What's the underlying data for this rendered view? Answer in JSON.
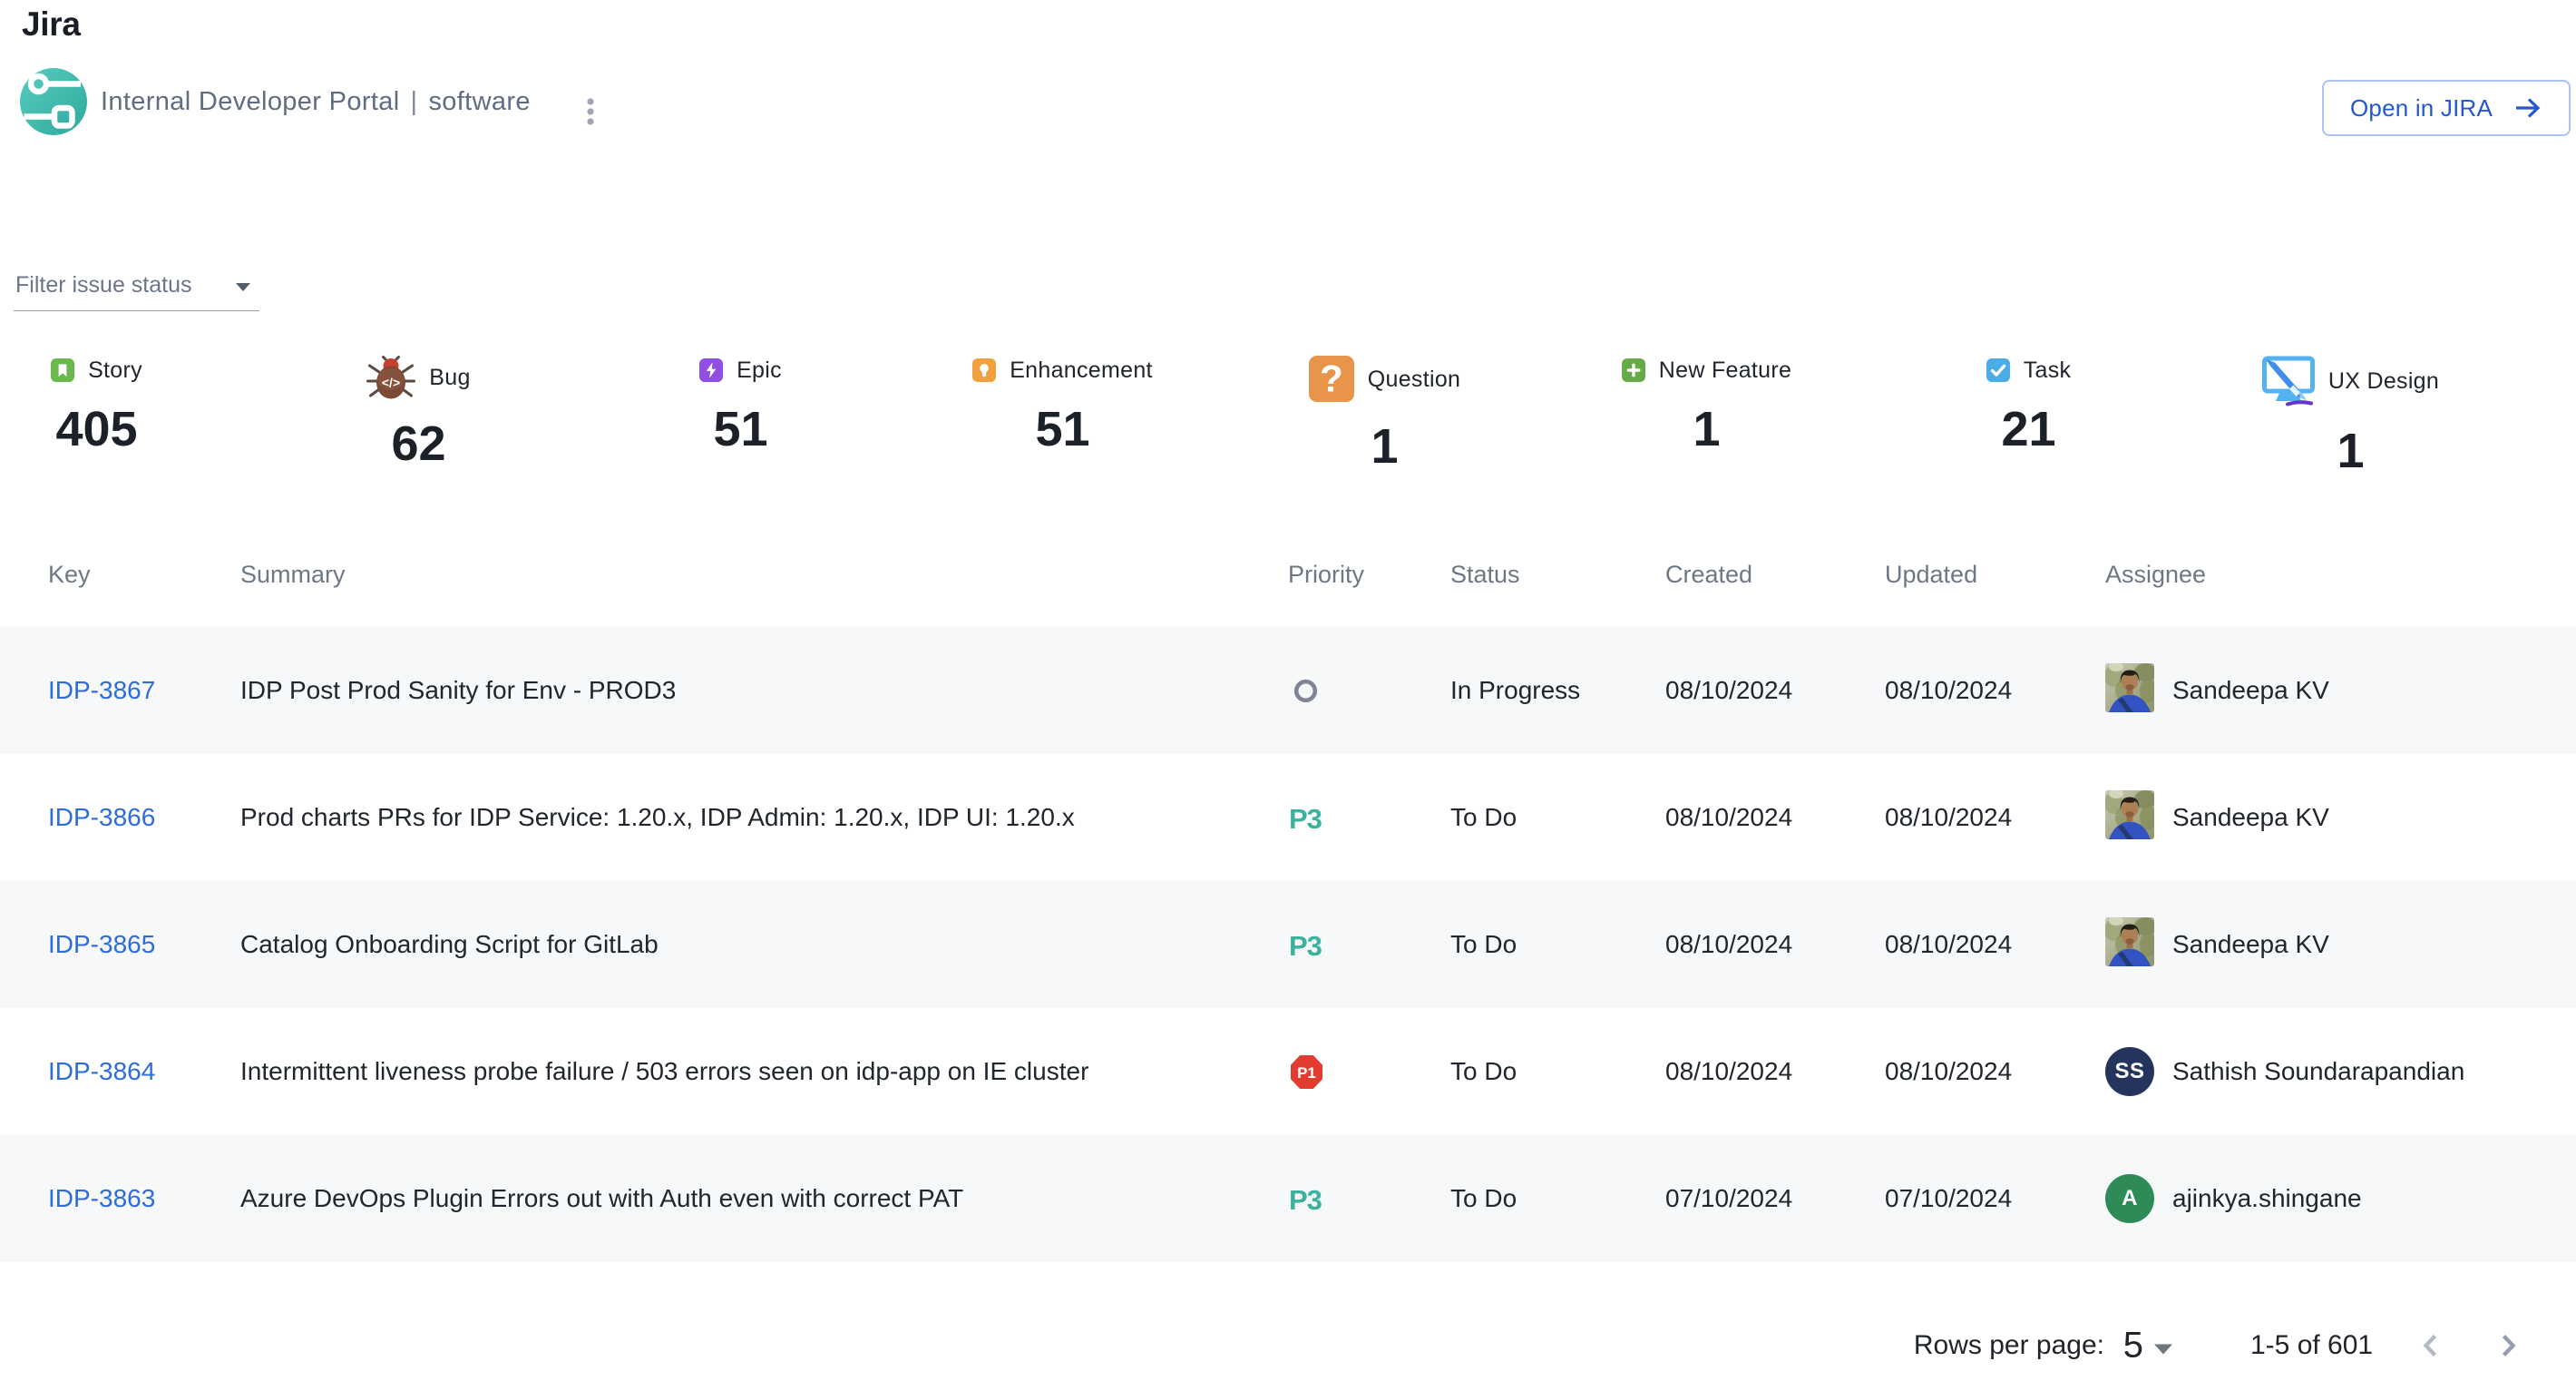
{
  "page": {
    "title": "Jira"
  },
  "header": {
    "project_name": "Internal Developer Portal",
    "separator": "|",
    "project_type": "software",
    "open_button_label": "Open in JIRA"
  },
  "filter": {
    "label": "Filter issue status"
  },
  "stats": [
    {
      "label": "Story",
      "count": "405",
      "icon": "story"
    },
    {
      "label": "Bug",
      "count": "62",
      "icon": "bug"
    },
    {
      "label": "Epic",
      "count": "51",
      "icon": "epic"
    },
    {
      "label": "Enhancement",
      "count": "51",
      "icon": "enhancement"
    },
    {
      "label": "Question",
      "count": "1",
      "icon": "question"
    },
    {
      "label": "New Feature",
      "count": "1",
      "icon": "new-feature"
    },
    {
      "label": "Task",
      "count": "21",
      "icon": "task"
    },
    {
      "label": "UX Design",
      "count": "1",
      "icon": "ux-design"
    }
  ],
  "table": {
    "columns": [
      "Key",
      "Summary",
      "Priority",
      "Status",
      "Created",
      "Updated",
      "Assignee"
    ],
    "rows": [
      {
        "key": "IDP-3867",
        "summary": "IDP Post Prod Sanity for Env - PROD3",
        "priority_icon": "medium-circle",
        "status": "In Progress",
        "created": "08/10/2024",
        "updated": "08/10/2024",
        "assignee": {
          "name": "Sandeepa KV",
          "avatar": "photo"
        }
      },
      {
        "key": "IDP-3866",
        "summary": "Prod charts PRs for IDP Service: 1.20.x, IDP Admin: 1.20.x, IDP UI: 1.20.x",
        "priority_icon": "p3",
        "priority_label": "P3",
        "status": "To Do",
        "created": "08/10/2024",
        "updated": "08/10/2024",
        "assignee": {
          "name": "Sandeepa KV",
          "avatar": "photo"
        }
      },
      {
        "key": "IDP-3865",
        "summary": "Catalog Onboarding Script for GitLab",
        "priority_icon": "p3",
        "priority_label": "P3",
        "status": "To Do",
        "created": "08/10/2024",
        "updated": "08/10/2024",
        "assignee": {
          "name": "Sandeepa KV",
          "avatar": "photo"
        }
      },
      {
        "key": "IDP-3864",
        "summary": "Intermittent liveness probe failure / 503 errors seen on idp-app on IE cluster",
        "priority_icon": "p1",
        "priority_label": "P1",
        "status": "To Do",
        "created": "08/10/2024",
        "updated": "08/10/2024",
        "assignee": {
          "name": "Sathish Soundarapandian",
          "avatar": "initials",
          "initials": "SS",
          "color": "#24345c"
        }
      },
      {
        "key": "IDP-3863",
        "summary": "Azure DevOps Plugin Errors out with Auth even with correct PAT",
        "priority_icon": "p3",
        "priority_label": "P3",
        "status": "To Do",
        "created": "07/10/2024",
        "updated": "07/10/2024",
        "assignee": {
          "name": "ajinkya.shingane",
          "avatar": "initials",
          "initials": "A",
          "color": "#2e8b57"
        }
      }
    ]
  },
  "pagination": {
    "rows_per_page_label": "Rows per page:",
    "rows_per_page_value": "5",
    "range_label": "1-5 of 601"
  },
  "colors": {
    "story": "#69b94d",
    "epic": "#904ee2",
    "enhancement": "#f0a03d",
    "question": "#e8944a",
    "newf": "#67ab49",
    "task": "#4bade8",
    "p1": "#e23b30",
    "p3": "#3bb39c",
    "link": "#2d6cd9",
    "stripe": "#f6f8fa",
    "button": "#2457d0",
    "teal1": "#58cdc0",
    "teal2": "#2da99b",
    "uxblue": "#53b2ef",
    "uxbrush": "#3f8fe8",
    "uxpurple": "#6633cc"
  }
}
